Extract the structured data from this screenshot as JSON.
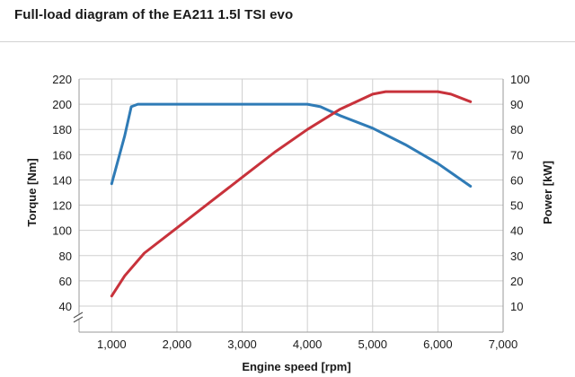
{
  "title": "Full-load diagram of the EA211 1.5l TSI evo",
  "chart_data": {
    "type": "line",
    "title": "Full-load diagram of the EA211 1.5l TSI evo",
    "xlabel": "Engine speed [rpm]",
    "ylabel_left": "Torque [Nm]",
    "ylabel_right": "Power [kW]",
    "xlim": [
      500,
      7000
    ],
    "x_ticks": [
      1000,
      2000,
      3000,
      4000,
      5000,
      6000,
      7000
    ],
    "x_tick_labels": [
      "1,000",
      "2,000",
      "3,000",
      "4,000",
      "5,000",
      "6,000",
      "7,000"
    ],
    "ylim_left": [
      40,
      220
    ],
    "y_ticks_left": [
      40,
      60,
      80,
      100,
      120,
      140,
      160,
      180,
      200,
      220
    ],
    "ylim_right": [
      10,
      100
    ],
    "y_ticks_right": [
      10,
      20,
      30,
      40,
      50,
      60,
      70,
      80,
      90,
      100
    ],
    "grid": true,
    "axis_break_left": true,
    "series": [
      {
        "axis": "left",
        "color": "#2f7bb6",
        "x": [
          1000,
          1200,
          1300,
          1400,
          1500,
          2000,
          3000,
          3500,
          4000,
          4200,
          4500,
          5000,
          5500,
          6000,
          6500
        ],
        "values": [
          137,
          175,
          198,
          200,
          200,
          200,
          200,
          200,
          200,
          198,
          191,
          181,
          168,
          153,
          135
        ]
      },
      {
        "axis": "right",
        "color": "#c8323b",
        "x": [
          1000,
          1200,
          1500,
          2000,
          2500,
          3000,
          3500,
          4000,
          4500,
          5000,
          5200,
          5500,
          6000,
          6200,
          6500
        ],
        "values": [
          14,
          22,
          31,
          41,
          51,
          61,
          71,
          80,
          88,
          94,
          95,
          95,
          95,
          94,
          91
        ]
      }
    ]
  }
}
